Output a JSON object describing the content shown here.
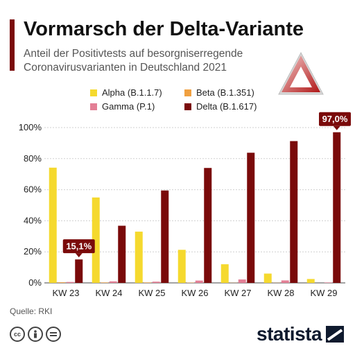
{
  "title": "Vormarsch der Delta-Variante",
  "subtitle": "Anteil der Positivtests auf besorgniserregende Coronavirusvarianten in Deutschland 2021",
  "source": "Quelle: RKI",
  "brand": "statista",
  "colors": {
    "accent": "#7a0a0a",
    "alpha": "#f5d92e",
    "beta": "#f0a040",
    "gamma": "#e37f95",
    "delta": "#7a0a0a",
    "grid": "#cfcfcf"
  },
  "icons": [
    "warning-triangle-icon",
    "cc-icon",
    "by-icon",
    "nd-icon",
    "statista-logo-icon"
  ],
  "chart_data": {
    "type": "bar",
    "categories": [
      "KW 23",
      "KW 24",
      "KW 25",
      "KW 26",
      "KW 27",
      "KW 28",
      "KW 29"
    ],
    "series": [
      {
        "name": "Alpha (B.1.1.7)",
        "color": "#f5d92e",
        "values": [
          74.2,
          55,
          33,
          21.3,
          12,
          6,
          2.5
        ]
      },
      {
        "name": "Beta (B.1.351)",
        "color": "#f0a040",
        "values": [
          0.4,
          0.3,
          0.3,
          0.2,
          0.1,
          0.1,
          0
        ]
      },
      {
        "name": "Gamma (P.1)",
        "color": "#e37f95",
        "values": [
          0.6,
          1,
          0.8,
          1.5,
          2.2,
          1.6,
          0.3
        ]
      },
      {
        "name": "Delta (B.1.617)",
        "color": "#7a0a0a",
        "values": [
          15.1,
          36.8,
          59.5,
          74,
          83.8,
          91.3,
          97
        ]
      }
    ],
    "yticks": [
      "0%",
      "20%",
      "40%",
      "60%",
      "80%",
      "100%"
    ],
    "ylim": [
      0,
      100
    ],
    "annotations": [
      {
        "category": "KW 23",
        "series": "Delta (B.1.617)",
        "label": "15,1%"
      },
      {
        "category": "KW 29",
        "series": "Delta (B.1.617)",
        "label": "97,0%"
      }
    ],
    "grid": true,
    "legend_position": "top"
  }
}
